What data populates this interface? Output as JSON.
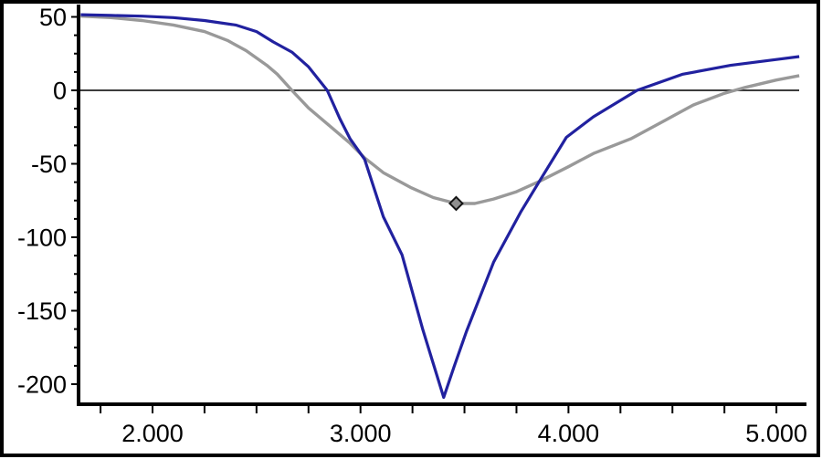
{
  "window": {
    "background": "#ffffff",
    "border_color": "#000000"
  },
  "chart_data": {
    "type": "line",
    "title": "",
    "xlabel": "",
    "ylabel": "",
    "grid": false,
    "legend": "none",
    "zero_line": true,
    "x_axis": {
      "range": [
        1.655,
        5.115
      ],
      "tick_values": [
        2,
        3,
        4,
        5
      ],
      "tick_labels": [
        "2.000",
        "3.000",
        "4.000",
        "5.000"
      ],
      "minor_tick_start": 1.75,
      "minor_tick_step": 0.25,
      "minor_tick_end": 5.0
    },
    "y_axis": {
      "range": [
        -215,
        59
      ],
      "tick_values": [
        50,
        0,
        -50,
        -100,
        -150,
        -200
      ],
      "tick_labels": [
        "50",
        "0",
        "-50",
        "-100",
        "-150",
        "-200"
      ],
      "minor_tick_step": 12.5,
      "minor_tick_top": 37.5,
      "minor_tick_bottom": -187.5
    },
    "colors": {
      "axis": "#000000",
      "zero_line": "#3c3c3c",
      "tick_label": "#000000",
      "background": "#ffffff",
      "border": "#000000"
    },
    "series": [
      {
        "name": "gray-trace",
        "color": "#999999",
        "width": 3.4,
        "points": [
          [
            1.655,
            50.5
          ],
          [
            1.8,
            49.5
          ],
          [
            1.95,
            47.5
          ],
          [
            2.1,
            44.5
          ],
          [
            2.25,
            40
          ],
          [
            2.36,
            34
          ],
          [
            2.45,
            27
          ],
          [
            2.55,
            17
          ],
          [
            2.6,
            11
          ],
          [
            2.67,
            0
          ],
          [
            2.75,
            -12
          ],
          [
            2.85,
            -24
          ],
          [
            2.95,
            -36
          ],
          [
            3.02,
            -46
          ],
          [
            3.11,
            -56
          ],
          [
            3.24,
            -66
          ],
          [
            3.35,
            -73
          ],
          [
            3.46,
            -77
          ],
          [
            3.55,
            -77
          ],
          [
            3.64,
            -74
          ],
          [
            3.75,
            -69
          ],
          [
            3.86,
            -62
          ],
          [
            4.0,
            -52
          ],
          [
            4.12,
            -43
          ],
          [
            4.3,
            -33
          ],
          [
            4.47,
            -20
          ],
          [
            4.6,
            -10
          ],
          [
            4.75,
            -2
          ],
          [
            4.85,
            2
          ],
          [
            5.0,
            7
          ],
          [
            5.11,
            10
          ]
        ],
        "marker": {
          "shape": "diamond",
          "x": 3.46,
          "y": -77,
          "size": 7,
          "fill": "#8f8f8f",
          "stroke": "#151515"
        }
      },
      {
        "name": "blue-trace",
        "color": "#21219f",
        "width": 3.2,
        "points": [
          [
            1.655,
            51.5
          ],
          [
            1.8,
            51
          ],
          [
            1.95,
            50.5
          ],
          [
            2.1,
            49.5
          ],
          [
            2.25,
            47.5
          ],
          [
            2.4,
            44.5
          ],
          [
            2.5,
            40
          ],
          [
            2.58,
            33
          ],
          [
            2.67,
            26
          ],
          [
            2.75,
            16
          ],
          [
            2.84,
            0
          ],
          [
            2.9,
            -19
          ],
          [
            2.95,
            -33
          ],
          [
            3.02,
            -47
          ],
          [
            3.11,
            -86
          ],
          [
            3.2,
            -112
          ],
          [
            3.3,
            -163
          ],
          [
            3.35,
            -186
          ],
          [
            3.4,
            -209
          ],
          [
            3.45,
            -188
          ],
          [
            3.51,
            -164
          ],
          [
            3.64,
            -117
          ],
          [
            3.77,
            -83
          ],
          [
            3.86,
            -62
          ],
          [
            3.99,
            -32
          ],
          [
            4.12,
            -18
          ],
          [
            4.33,
            0
          ],
          [
            4.55,
            11
          ],
          [
            4.78,
            17
          ],
          [
            5.0,
            21
          ],
          [
            5.11,
            23
          ]
        ]
      }
    ]
  }
}
